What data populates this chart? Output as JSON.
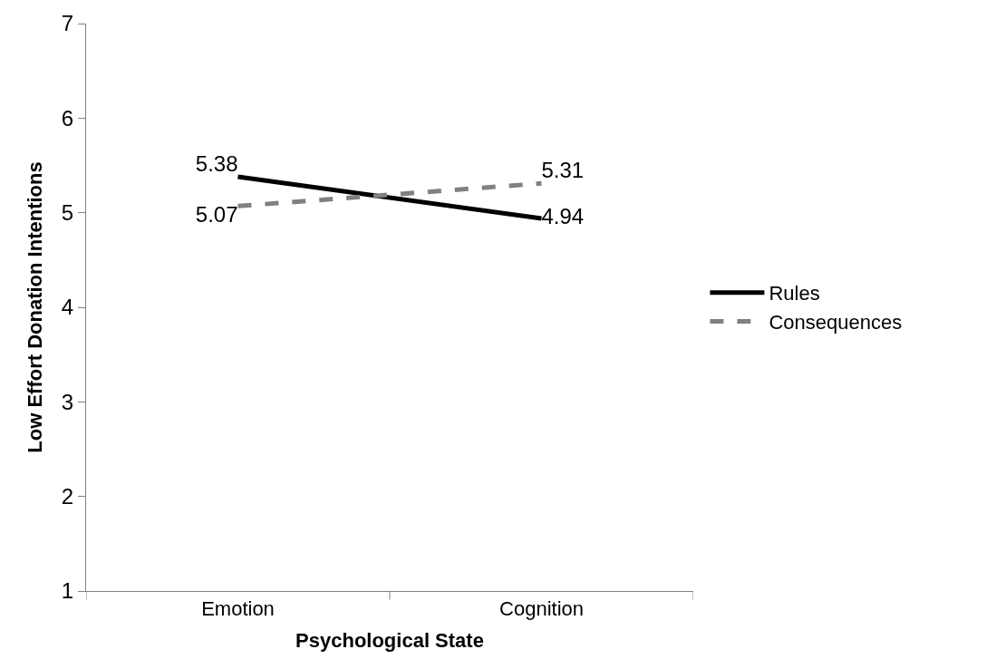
{
  "chart_data": {
    "type": "line",
    "xlabel": "Psychological State",
    "ylabel": "Low Effort Donation Intentions",
    "categories": [
      "Emotion",
      "Cognition"
    ],
    "series": [
      {
        "name": "Rules",
        "color": "#000000",
        "values": [
          5.38,
          4.94
        ],
        "line_style": "solid"
      },
      {
        "name": "Consequences",
        "color": "#808080",
        "values": [
          5.07,
          5.31
        ],
        "line_style": "dashed"
      }
    ],
    "ylim": [
      1,
      7
    ],
    "yticks": [
      1,
      2,
      3,
      4,
      5,
      6,
      7
    ],
    "legend": "right",
    "marker": "none",
    "data_labels": true
  }
}
